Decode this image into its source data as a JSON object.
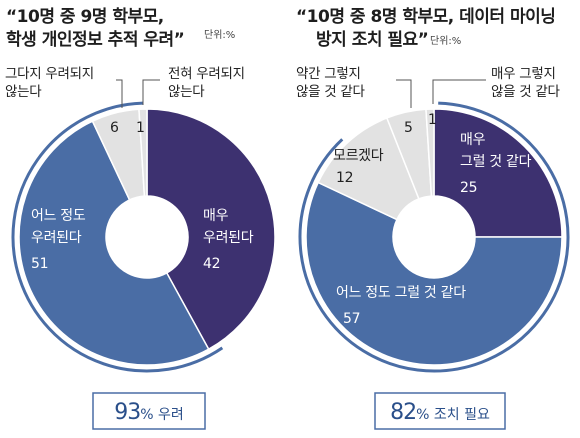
{
  "chart_data": [
    {
      "type": "pie",
      "title": "“10명 중 9명 학부모, 학생 개인정보 추적 우려”",
      "title_lines": [
        "“10명 중 9명 학부모,",
        "학생 개인정보 추적 우려”"
      ],
      "unit": "단위:%",
      "slices": [
        {
          "label": "매우 우려된다",
          "label_lines": [
            "매우",
            "우려된다"
          ],
          "value": 42,
          "color": "#3d3170",
          "text_color": "#ffffff"
        },
        {
          "label": "어느 정도 우려된다",
          "label_lines": [
            "어느 정도",
            "우려된다"
          ],
          "value": 51,
          "color": "#4a6da5",
          "text_color": "#ffffff"
        },
        {
          "label": "그다지 우려되지 않는다",
          "label_lines": [
            "그다지 우려되지",
            "않는다"
          ],
          "value": 6,
          "color": "#e2e2e2",
          "text_color": "#222222"
        },
        {
          "label": "전혀 우려되지 않는다",
          "label_lines": [
            "전혀 우려되지",
            "않는다"
          ],
          "value": 1,
          "color": "#e2e2e2",
          "text_color": "#222222"
        }
      ],
      "summary": {
        "value": "93",
        "text": "% 우려"
      }
    },
    {
      "type": "pie",
      "title": "“10명 중 8명 학부모, 데이터 마이닝 방지 조치 필요”",
      "title_lines": [
        "“10명 중 8명 학부모, 데이터 마이닝",
        "방지 조치 필요”"
      ],
      "unit": "단위:%",
      "slices": [
        {
          "label": "매우 그럴 것 같다",
          "label_lines": [
            "매우",
            "그럴 것 같다"
          ],
          "value": 25,
          "color": "#3d3170",
          "text_color": "#ffffff"
        },
        {
          "label": "어느 정도 그럴 것 같다",
          "label_lines": [
            "어느 정도 그럴 것 같다"
          ],
          "value": 57,
          "color": "#4a6da5",
          "text_color": "#ffffff"
        },
        {
          "label": "모르겠다",
          "label_lines": [
            "모르겠다"
          ],
          "value": 12,
          "color": "#e2e2e2",
          "text_color": "#222222"
        },
        {
          "label": "약간 그렇지 않을 것 같다",
          "label_lines": [
            "약간 그렇지",
            "않을 것 같다"
          ],
          "value": 5,
          "color": "#e2e2e2",
          "text_color": "#222222"
        },
        {
          "label": "매우 그렇지 않을 것 같다",
          "label_lines": [
            "매우 그렇지",
            "않을 것 같다"
          ],
          "value": 1,
          "color": "#e2e2e2",
          "text_color": "#222222"
        }
      ],
      "summary": {
        "value": "82",
        "text": "% 조치 필요"
      }
    }
  ]
}
